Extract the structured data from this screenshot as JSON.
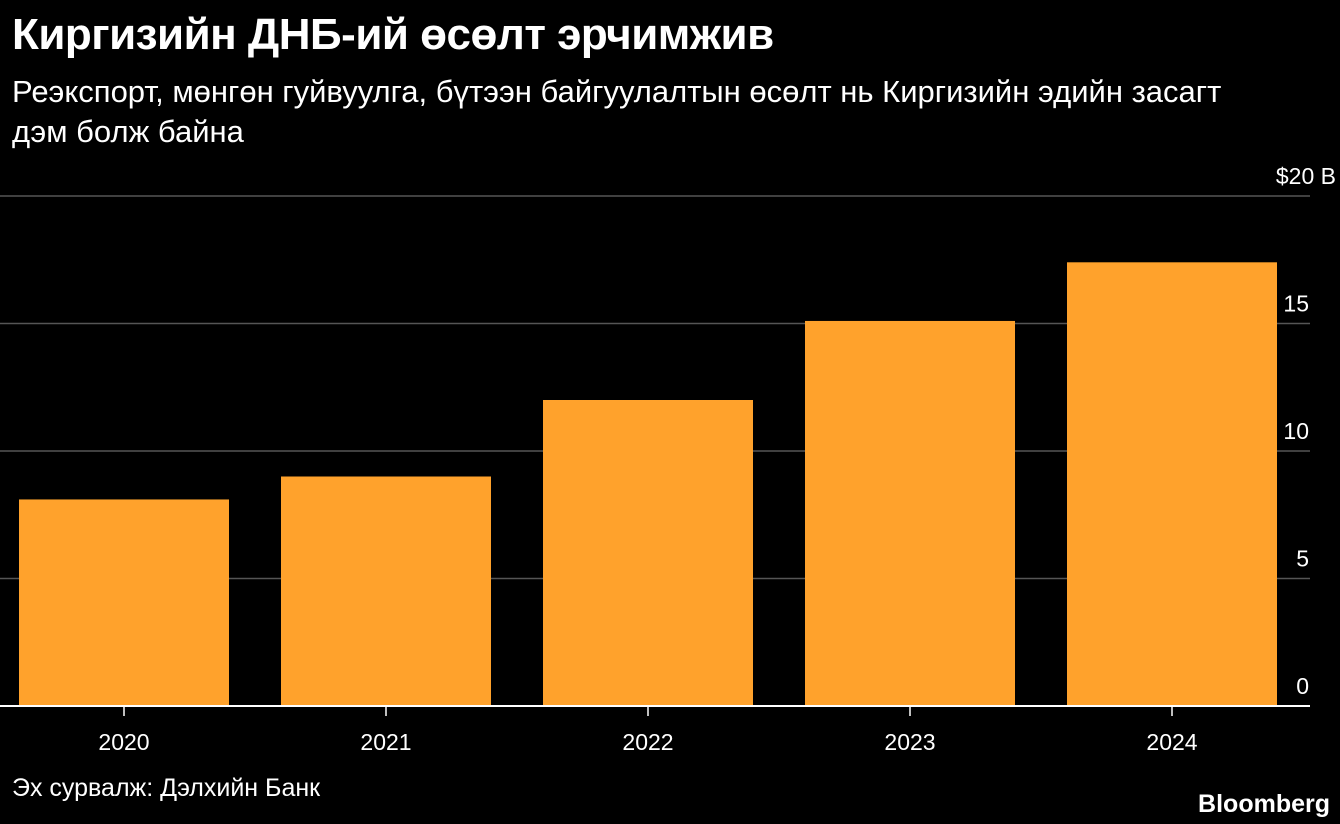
{
  "header": {
    "title": "Киргизийн ДНБ-ий өсөлт эрчимжив",
    "subtitle": "Реэкспорт, мөнгөн гуйвуулга, бүтээн байгуулалтын өсөлт нь Киргизийн эдийн засагт дэм болж байна"
  },
  "footer": {
    "source": "Эх сурвалж: Дэлхийн Банк",
    "brand": "Bloomberg"
  },
  "colors": {
    "background": "#000000",
    "bar": "#FFA22C",
    "grid": "#555555",
    "axis": "#FFFFFF",
    "text": "#FFFFFF"
  },
  "chart_data": {
    "type": "bar",
    "categories": [
      "2020",
      "2021",
      "2022",
      "2023",
      "2024"
    ],
    "values": [
      8.1,
      9.0,
      12.0,
      15.1,
      17.4
    ],
    "ylim": [
      0,
      20
    ],
    "yticks": [
      0,
      5,
      10,
      15,
      20
    ],
    "ytick_labels": [
      "0",
      "5",
      "10",
      "15",
      "$20 B"
    ],
    "title": "Киргизийн ДНБ-ий өсөлт эрчимжив",
    "xlabel": "",
    "ylabel": "",
    "grid": true,
    "y_axis_side": "right"
  }
}
